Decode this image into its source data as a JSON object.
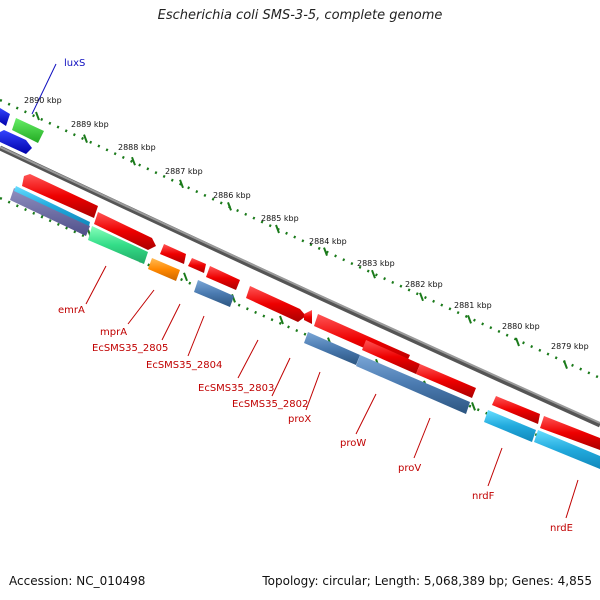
{
  "title": "Escherichia coli SMS-3-5, complete genome",
  "footer": {
    "accession": "Accession: NC_010498",
    "topology": "Topology: circular; Length: 5,068,389 bp; Genes: 4,855"
  },
  "ticks": [
    "2890 kbp",
    "2889 kbp",
    "2888 kbp",
    "2887 kbp",
    "2886 kbp",
    "2885 kbp",
    "2884 kbp",
    "2883 kbp",
    "2882 kbp",
    "2881 kbp",
    "2880 kbp",
    "2879 kbp"
  ],
  "genes": [
    {
      "name": "luxS",
      "color": "#0000cc",
      "strand": "outer"
    },
    {
      "name": "emrA",
      "color": "#cc0000",
      "strand": "inner"
    },
    {
      "name": "mprA",
      "color": "#cc0000",
      "strand": "inner"
    },
    {
      "name": "EcSMS35_2805",
      "color": "#cc0000",
      "strand": "inner"
    },
    {
      "name": "EcSMS35_2804",
      "color": "#cc0000",
      "strand": "inner"
    },
    {
      "name": "EcSMS35_2803",
      "color": "#cc0000",
      "strand": "inner"
    },
    {
      "name": "EcSMS35_2802",
      "color": "#cc0000",
      "strand": "inner"
    },
    {
      "name": "proX",
      "color": "#cc0000",
      "strand": "inner"
    },
    {
      "name": "proW",
      "color": "#cc0000",
      "strand": "inner"
    },
    {
      "name": "proV",
      "color": "#cc0000",
      "strand": "inner"
    },
    {
      "name": "nrdF",
      "color": "#cc0000",
      "strand": "inner"
    },
    {
      "name": "nrdE",
      "color": "#cc0000",
      "strand": "inner"
    }
  ],
  "colors": {
    "backbone": "#808080",
    "tick_dots": "#1a7a1a",
    "red_gene": "#ee1111",
    "blue_gene": "#4a7ab0",
    "cyan_gene": "#22aadd",
    "green_gene": "#33dd88",
    "orange_gene": "#ff8800"
  }
}
